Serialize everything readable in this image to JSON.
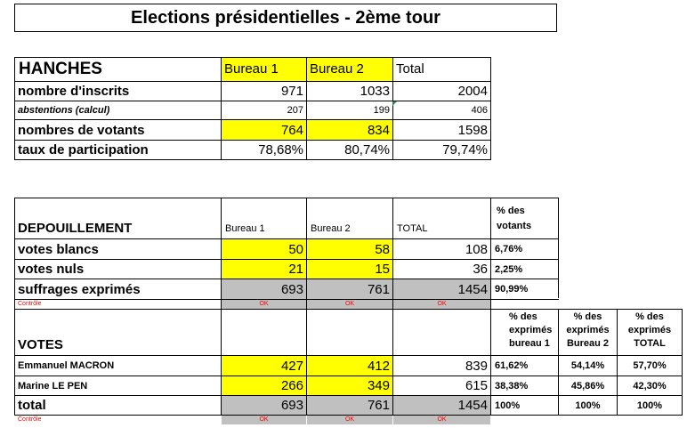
{
  "title": "Elections présidentielles - 2ème tour",
  "summary": {
    "commune": "HANCHES",
    "col1": "Bureau 1",
    "col2": "Bureau 2",
    "col3": "Total",
    "rows": [
      {
        "label": "nombre d'inscrits",
        "v1": "971",
        "v2": "1033",
        "v3": "2004"
      },
      {
        "label": "abstentions (calcul)",
        "v1": "207",
        "v2": "199",
        "v3": "406"
      },
      {
        "label": "nombres de votants",
        "v1": "764",
        "v2": "834",
        "v3": "1598"
      },
      {
        "label": "taux de participation",
        "v1": "78,68%",
        "v2": "80,74%",
        "v3": "79,74%"
      }
    ]
  },
  "depouillement": {
    "header": "DEPOUILLEMENT",
    "col1": "Bureau 1",
    "col2": "Bureau 2",
    "col3": "TOTAL",
    "pct_header": "% des votants",
    "rows": [
      {
        "label": "votes blancs",
        "v1": "50",
        "v2": "58",
        "v3": "108",
        "pct": "6,76%"
      },
      {
        "label": "votes nuls",
        "v1": "21",
        "v2": "15",
        "v3": "36",
        "pct": "2,25%"
      },
      {
        "label": "suffrages exprimés",
        "v1": "693",
        "v2": "761",
        "v3": "1454",
        "pct": "90,99%"
      }
    ],
    "controle_label": "Contrôle",
    "controle": [
      "OK",
      "OK",
      "OK"
    ]
  },
  "votes": {
    "header": "VOTES",
    "pct_h1": "% des exprimés bureau 1",
    "pct_h2": "% des exprimés Bureau 2",
    "pct_h3": "% des exprimés TOTAL",
    "rows": [
      {
        "label": "Emmanuel MACRON",
        "v1": "427",
        "v2": "412",
        "v3": "839",
        "p1": "61,62%",
        "p2": "54,14%",
        "p3": "57,70%"
      },
      {
        "label": "Marine LE PEN",
        "v1": "266",
        "v2": "349",
        "v3": "615",
        "p1": "38,38%",
        "p2": "45,86%",
        "p3": "42,30%"
      }
    ],
    "total": {
      "label": "total",
      "v1": "693",
      "v2": "761",
      "v3": "1454",
      "p1": "100%",
      "p2": "100%",
      "p3": "100%"
    },
    "controle_label": "Contrôle",
    "controle": [
      "OK",
      "OK",
      "OK"
    ]
  }
}
